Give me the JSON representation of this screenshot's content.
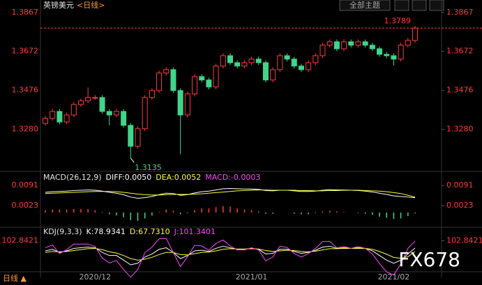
{
  "ui": {
    "title": "英镑美元",
    "period": "<日线>",
    "theme_button": "全部主题",
    "bottom_tab": "日线 ▲",
    "watermark": "FX678"
  },
  "chart_data": [
    {
      "type": "candlestick",
      "up_color": "#ff3b3b",
      "down_color": "#3fd58a",
      "categories": [
        null,
        null,
        null,
        null,
        null,
        null,
        null,
        "2020/12",
        null,
        null,
        null,
        null,
        null,
        null,
        null,
        null,
        null,
        null,
        null,
        null,
        null,
        null,
        null,
        null,
        null,
        null,
        null,
        null,
        null,
        "2021/01",
        null,
        null,
        null,
        null,
        null,
        null,
        null,
        null,
        null,
        null,
        null,
        null,
        null,
        null,
        null,
        null,
        null,
        null,
        null,
        "2021/02",
        null,
        null,
        null
      ],
      "open": [
        1.331,
        1.3335,
        1.337,
        1.3317,
        1.3352,
        1.3405,
        1.3423,
        1.344,
        1.344,
        1.337,
        1.3352,
        1.337,
        1.33,
        1.3195,
        1.3283,
        1.344,
        1.3475,
        1.3563,
        1.358,
        1.3475,
        1.3352,
        1.3458,
        1.3545,
        1.3528,
        1.3493,
        1.3598,
        1.365,
        1.3615,
        1.3598,
        1.3615,
        1.3633,
        1.3615,
        1.3528,
        1.358,
        1.365,
        1.3633,
        1.3598,
        1.358,
        1.3615,
        1.365,
        1.3703,
        1.372,
        1.3685,
        1.372,
        1.3703,
        1.372,
        1.3703,
        1.3685,
        1.3657,
        1.365,
        1.3633,
        1.3703,
        1.3727
      ],
      "high": [
        1.3347,
        1.3382,
        1.3382,
        1.3364,
        1.3417,
        1.3435,
        1.349,
        1.3452,
        1.3452,
        1.3382,
        1.3382,
        1.3382,
        1.3312,
        1.3295,
        1.3452,
        1.3487,
        1.3575,
        1.3592,
        1.3592,
        1.3487,
        1.347,
        1.3557,
        1.3557,
        1.354,
        1.361,
        1.3662,
        1.3662,
        1.3627,
        1.3627,
        1.3645,
        1.3645,
        1.3627,
        1.3592,
        1.3662,
        1.3662,
        1.3645,
        1.361,
        1.3627,
        1.3662,
        1.3715,
        1.3732,
        1.3732,
        1.3732,
        1.3732,
        1.3732,
        1.3732,
        1.3715,
        1.3697,
        1.3669,
        1.3662,
        1.3715,
        1.3739,
        1.38
      ],
      "low": [
        1.3298,
        1.3323,
        1.3305,
        1.3305,
        1.334,
        1.3393,
        1.3411,
        1.3428,
        1.3358,
        1.33,
        1.334,
        1.3288,
        1.3135,
        1.3183,
        1.3271,
        1.3428,
        1.3463,
        1.3551,
        1.3463,
        1.3155,
        1.334,
        1.3446,
        1.3516,
        1.3481,
        1.3481,
        1.3586,
        1.3603,
        1.3586,
        1.3586,
        1.3603,
        1.3603,
        1.3516,
        1.3516,
        1.3568,
        1.3621,
        1.3586,
        1.3568,
        1.3568,
        1.3603,
        1.3638,
        1.3691,
        1.3673,
        1.3673,
        1.3691,
        1.3691,
        1.3691,
        1.3673,
        1.3645,
        1.3638,
        1.36,
        1.3621,
        1.3691,
        1.3715
      ],
      "close": [
        1.3335,
        1.337,
        1.3317,
        1.3352,
        1.3405,
        1.3423,
        1.344,
        1.344,
        1.337,
        1.3352,
        1.337,
        1.33,
        1.3195,
        1.3283,
        1.344,
        1.3475,
        1.3563,
        1.358,
        1.3475,
        1.3352,
        1.3458,
        1.3545,
        1.3528,
        1.3493,
        1.3598,
        1.365,
        1.3615,
        1.3598,
        1.3615,
        1.3633,
        1.3615,
        1.3528,
        1.358,
        1.365,
        1.3633,
        1.3598,
        1.358,
        1.3615,
        1.365,
        1.3703,
        1.372,
        1.3685,
        1.372,
        1.3703,
        1.372,
        1.3703,
        1.3685,
        1.3657,
        1.365,
        1.3633,
        1.3703,
        1.3727,
        1.3789
      ],
      "ylim": [
        1.3072,
        1.3895
      ],
      "yticks": [
        1.3867,
        1.3672,
        1.3476,
        {
          "value": 1.328,
          "label": "1.3280"
        }
      ],
      "annotations": [
        {
          "text": "1.3789",
          "value": 1.3789,
          "color": "#ff3b3b"
        },
        {
          "text": "1.3135",
          "value": 1.3135,
          "color": "#3fd58a"
        }
      ]
    },
    {
      "type": "macd",
      "title": "MACD(26,12,9)",
      "up_color": "#ff3b3b",
      "down_color": "#3fd58a",
      "series": [
        {
          "name": "DIFF:0.0050",
          "color": "#ffffff",
          "values": [
            0.0068,
            0.007,
            0.0071,
            0.0072,
            0.0074,
            0.0075,
            0.0076,
            0.0075,
            0.0072,
            0.0068,
            0.0065,
            0.006,
            0.0052,
            0.0048,
            0.005,
            0.0054,
            0.006,
            0.0065,
            0.0064,
            0.0058,
            0.006,
            0.0066,
            0.007,
            0.0072,
            0.0076,
            0.008,
            0.0081,
            0.008,
            0.0079,
            0.0079,
            0.0078,
            0.0074,
            0.0073,
            0.0075,
            0.0075,
            0.0073,
            0.0071,
            0.0071,
            0.0072,
            0.0075,
            0.0077,
            0.0076,
            0.0076,
            0.0075,
            0.0074,
            0.0072,
            0.0069,
            0.0065,
            0.0061,
            0.0056,
            0.0054,
            0.0052,
            0.005
          ]
        },
        {
          "name": "DEA:0.0052",
          "color": "#ffff33",
          "values": [
            0.0064,
            0.0065,
            0.0066,
            0.0067,
            0.0068,
            0.0069,
            0.007,
            0.0071,
            0.0071,
            0.0071,
            0.007,
            0.0068,
            0.0065,
            0.0062,
            0.006,
            0.0059,
            0.0059,
            0.006,
            0.0061,
            0.0061,
            0.0061,
            0.0062,
            0.0063,
            0.0065,
            0.0067,
            0.0069,
            0.0071,
            0.0073,
            0.0074,
            0.0075,
            0.0076,
            0.0076,
            0.0075,
            0.0075,
            0.0075,
            0.0075,
            0.0074,
            0.0074,
            0.0073,
            0.0073,
            0.0074,
            0.0074,
            0.0075,
            0.0075,
            0.0075,
            0.0074,
            0.0073,
            0.0072,
            0.007,
            0.0067,
            0.0064,
            0.0058,
            0.0052
          ]
        },
        {
          "name": "MACD:-0.0003",
          "color": "#ff44ff",
          "style": "bar",
          "values": [
            0.0008,
            0.001,
            0.001,
            0.001,
            0.0012,
            0.0012,
            0.0012,
            0.0008,
            0.0002,
            -0.0006,
            -0.001,
            -0.0016,
            -0.0026,
            -0.0028,
            -0.002,
            -0.001,
            0.0002,
            0.001,
            0.0006,
            -0.0006,
            -0.0002,
            0.0008,
            0.0014,
            0.0014,
            0.0018,
            0.0022,
            0.002,
            0.0014,
            0.001,
            0.0008,
            0.0004,
            -0.0004,
            -0.0004,
            0,
            0,
            -0.0004,
            -0.0006,
            -0.0006,
            -0.0002,
            0.0004,
            0.0006,
            0.0004,
            0.0002,
            0,
            -0.0002,
            -0.0004,
            -0.0008,
            -0.0014,
            -0.0018,
            -0.0022,
            -0.002,
            -0.0012,
            -0.0003
          ]
        }
      ],
      "ylim": [
        -0.0047,
        0.0129
      ],
      "yticks": [
        0.0091,
        0.0023
      ]
    },
    {
      "type": "kdj",
      "title": "KDJ(9,3,3)",
      "series": [
        {
          "name": "K:78.9341",
          "color": "#ffffff",
          "values": [
            70,
            75,
            65,
            70,
            78,
            80,
            82,
            80,
            65,
            55,
            55,
            40,
            25,
            30,
            50,
            60,
            75,
            80,
            65,
            45,
            55,
            70,
            72,
            68,
            78,
            85,
            80,
            75,
            75,
            78,
            75,
            60,
            62,
            75,
            75,
            68,
            62,
            65,
            72,
            82,
            85,
            78,
            80,
            78,
            80,
            78,
            70,
            55,
            40,
            30,
            40,
            60,
            78.9341
          ]
        },
        {
          "name": "D:67.7310",
          "color": "#ffff33",
          "values": [
            65,
            68,
            67,
            68,
            71,
            74,
            77,
            78,
            74,
            67,
            63,
            55,
            45,
            40,
            43,
            49,
            58,
            65,
            65,
            58,
            57,
            61,
            65,
            66,
            70,
            75,
            77,
            76,
            76,
            77,
            76,
            71,
            68,
            70,
            72,
            71,
            68,
            67,
            69,
            73,
            77,
            77,
            78,
            78,
            78,
            78,
            75,
            68,
            59,
            49,
            46,
            51,
            67.731
          ]
        },
        {
          "name": "J:101.3401",
          "color": "#ff44ff",
          "values": [
            80,
            89,
            61,
            74,
            92,
            92,
            92,
            84,
            47,
            31,
            39,
            10,
            -15,
            10,
            64,
            82,
            109,
            110,
            65,
            19,
            51,
            88,
            86,
            72,
            94,
            105,
            86,
            73,
            73,
            80,
            73,
            38,
            50,
            85,
            81,
            62,
            50,
            61,
            78,
            100,
            101,
            80,
            84,
            78,
            84,
            78,
            60,
            29,
            2,
            -8,
            28,
            78,
            101.3401
          ]
        }
      ],
      "ylim": [
        -20,
        115
      ],
      "yticks": [
        102.8421
      ]
    }
  ]
}
